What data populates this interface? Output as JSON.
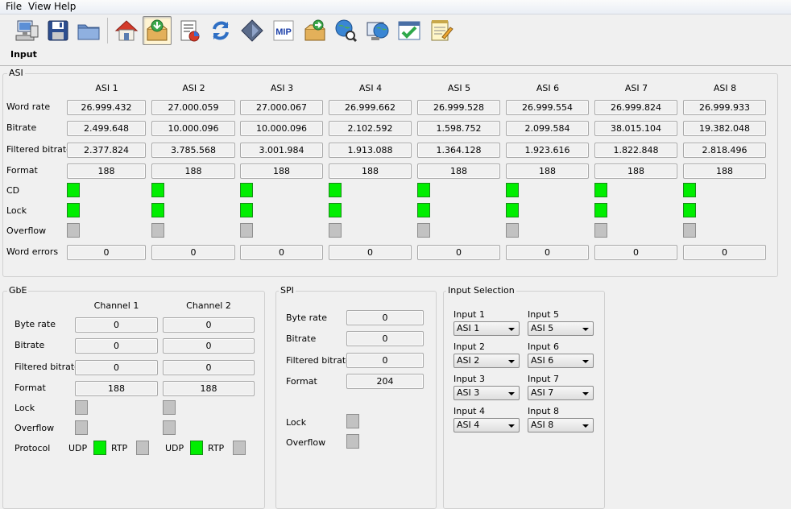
{
  "menu": [
    "File",
    "View",
    "Help"
  ],
  "toolbar": {
    "icons": [
      "computer-icon",
      "save-icon",
      "folder-icon",
      "home-icon",
      "input-box-icon",
      "chart-icon",
      "refresh-icon",
      "diamond-icon",
      "mip-icon",
      "output-box-icon",
      "globe-search-icon",
      "globe-monitor-icon",
      "calendar-check-icon",
      "notepad-icon"
    ],
    "mip_text": "MIP"
  },
  "page_title": "Input",
  "asi": {
    "title": "ASI",
    "row_labels": [
      "Word rate",
      "Bitrate",
      "Filtered bitrate",
      "Format",
      "CD",
      "Lock",
      "Overflow",
      "Word errors"
    ],
    "columns": [
      {
        "name": "ASI 1",
        "word_rate": "26.999.432",
        "bitrate": "2.499.648",
        "filtered_bitrate": "2.377.824",
        "format": "188",
        "cd": "on",
        "lock": "on",
        "overflow": "off",
        "word_errors": "0"
      },
      {
        "name": "ASI 2",
        "word_rate": "27.000.059",
        "bitrate": "10.000.096",
        "filtered_bitrate": "3.785.568",
        "format": "188",
        "cd": "on",
        "lock": "on",
        "overflow": "off",
        "word_errors": "0"
      },
      {
        "name": "ASI 3",
        "word_rate": "27.000.067",
        "bitrate": "10.000.096",
        "filtered_bitrate": "3.001.984",
        "format": "188",
        "cd": "on",
        "lock": "on",
        "overflow": "off",
        "word_errors": "0"
      },
      {
        "name": "ASI 4",
        "word_rate": "26.999.662",
        "bitrate": "2.102.592",
        "filtered_bitrate": "1.913.088",
        "format": "188",
        "cd": "on",
        "lock": "on",
        "overflow": "off",
        "word_errors": "0"
      },
      {
        "name": "ASI 5",
        "word_rate": "26.999.528",
        "bitrate": "1.598.752",
        "filtered_bitrate": "1.364.128",
        "format": "188",
        "cd": "on",
        "lock": "on",
        "overflow": "off",
        "word_errors": "0"
      },
      {
        "name": "ASI 6",
        "word_rate": "26.999.554",
        "bitrate": "2.099.584",
        "filtered_bitrate": "1.923.616",
        "format": "188",
        "cd": "on",
        "lock": "on",
        "overflow": "off",
        "word_errors": "0"
      },
      {
        "name": "ASI 7",
        "word_rate": "26.999.824",
        "bitrate": "38.015.104",
        "filtered_bitrate": "1.822.848",
        "format": "188",
        "cd": "on",
        "lock": "on",
        "overflow": "off",
        "word_errors": "0"
      },
      {
        "name": "ASI 8",
        "word_rate": "26.999.933",
        "bitrate": "19.382.048",
        "filtered_bitrate": "2.818.496",
        "format": "188",
        "cd": "on",
        "lock": "on",
        "overflow": "off",
        "word_errors": "0"
      }
    ]
  },
  "gbe": {
    "title": "GbE",
    "row_labels": [
      "Byte rate",
      "Bitrate",
      "Filtered bitrate",
      "Format",
      "Lock",
      "Overflow",
      "Protocol"
    ],
    "channels": [
      {
        "name": "Channel 1",
        "byte_rate": "0",
        "bitrate": "0",
        "filtered_bitrate": "0",
        "format": "188",
        "lock": "off",
        "overflow": "off",
        "udp_label": "UDP",
        "udp": "on",
        "rtp_label": "RTP",
        "rtp": "off"
      },
      {
        "name": "Channel 2",
        "byte_rate": "0",
        "bitrate": "0",
        "filtered_bitrate": "0",
        "format": "188",
        "lock": "off",
        "overflow": "off",
        "udp_label": "UDP",
        "udp": "on",
        "rtp_label": "RTP",
        "rtp": "off"
      }
    ]
  },
  "spi": {
    "title": "SPI",
    "row_labels": [
      "Byte rate",
      "Bitrate",
      "Filtered bitrate",
      "Format",
      "Lock",
      "Overflow"
    ],
    "byte_rate": "0",
    "bitrate": "0",
    "filtered_bitrate": "0",
    "format": "204",
    "lock": "off",
    "overflow": "off"
  },
  "input_selection": {
    "title": "Input Selection",
    "inputs": [
      {
        "label": "Input 1",
        "value": "ASI 1"
      },
      {
        "label": "Input 2",
        "value": "ASI 2"
      },
      {
        "label": "Input 3",
        "value": "ASI 3"
      },
      {
        "label": "Input 4",
        "value": "ASI 4"
      },
      {
        "label": "Input 5",
        "value": "ASI 5"
      },
      {
        "label": "Input 6",
        "value": "ASI 6"
      },
      {
        "label": "Input 7",
        "value": "ASI 7"
      },
      {
        "label": "Input 8",
        "value": "ASI 8"
      }
    ]
  }
}
